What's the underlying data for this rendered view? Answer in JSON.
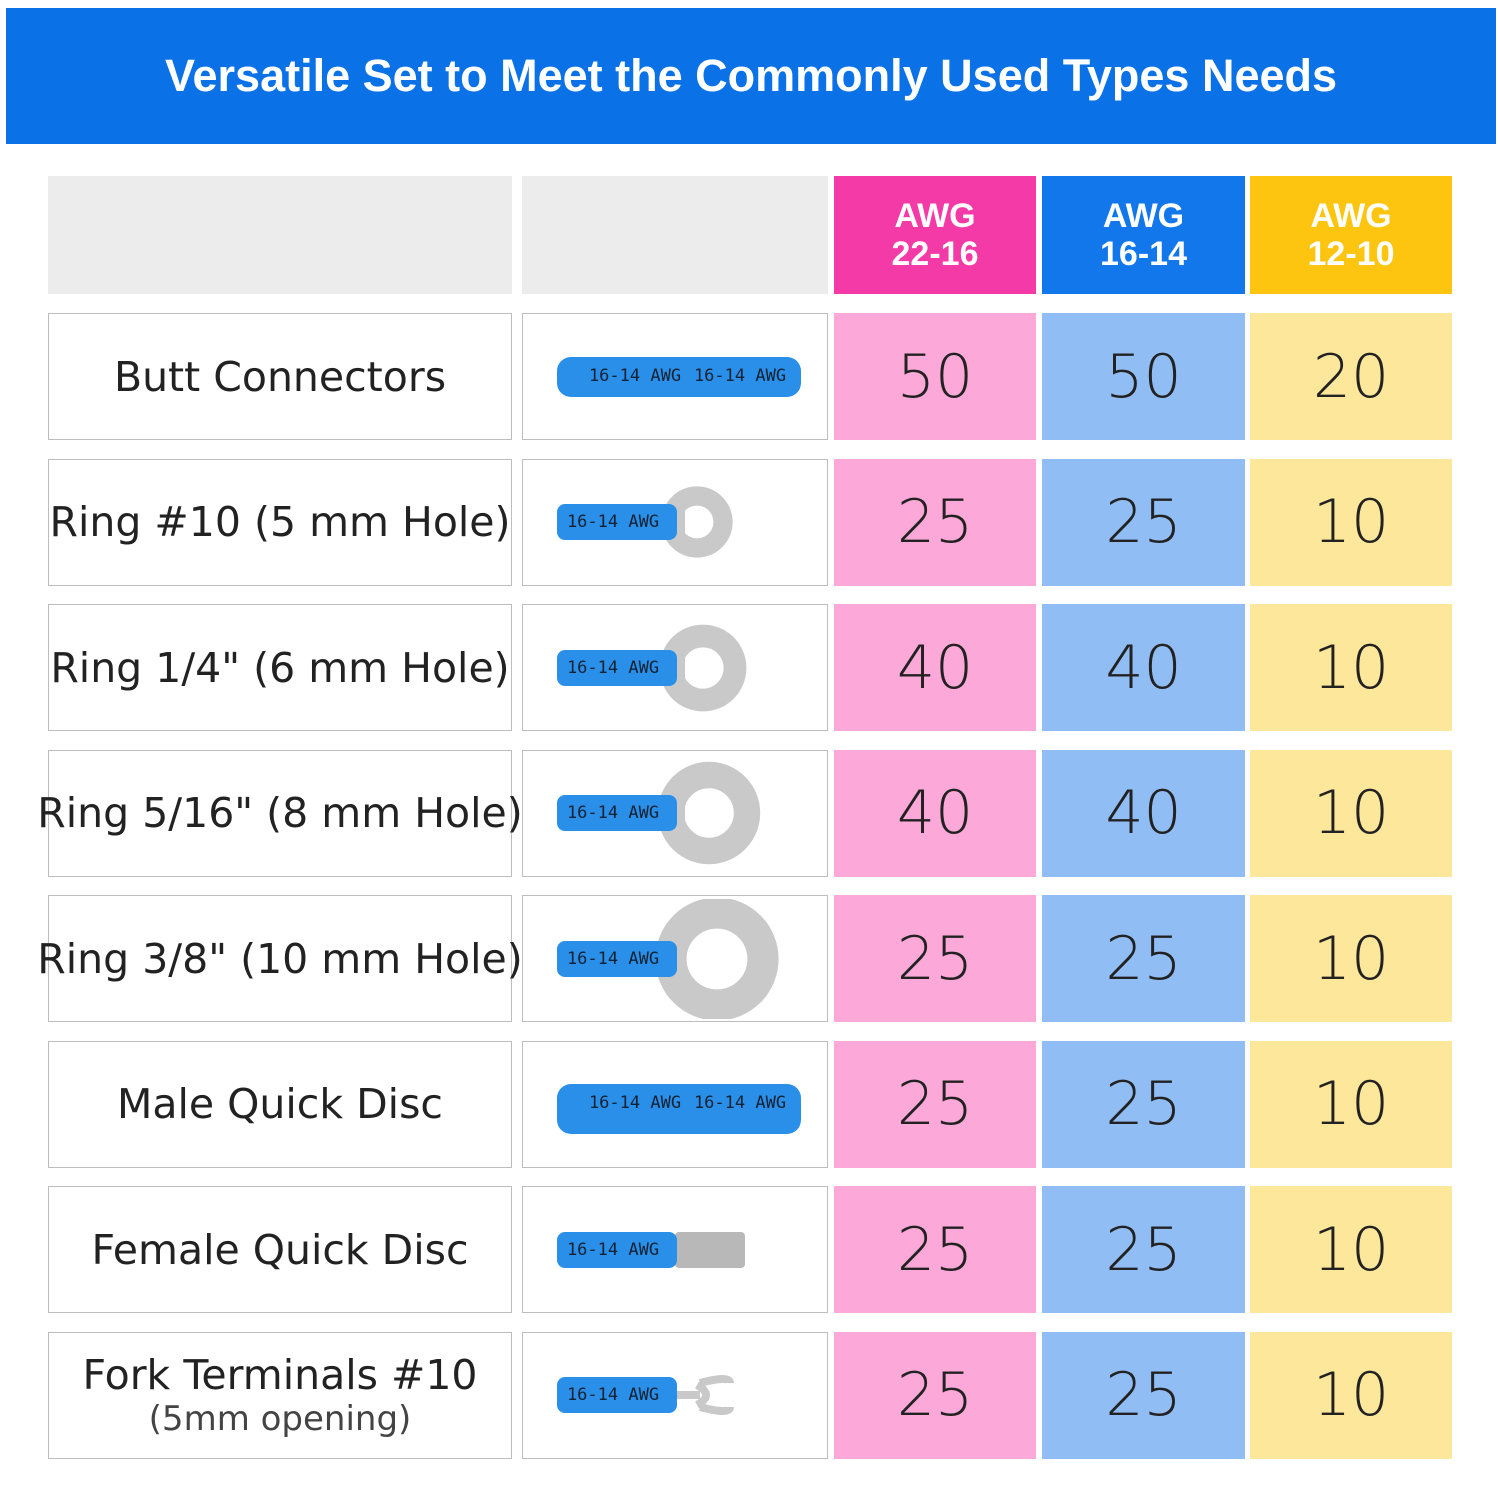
{
  "header": {
    "title": "Versatile Set to Meet the Commonly Used Types Needs"
  },
  "table": {
    "columns": [
      [
        "AWG",
        "22-16"
      ],
      [
        "AWG",
        "16-14"
      ],
      [
        "AWG",
        "12-10"
      ]
    ],
    "product_label": "16-14 AWG",
    "rows": [
      {
        "name": "Butt Connectors",
        "counts": [
          50,
          50,
          20
        ]
      },
      {
        "name": "Ring #10 (5 mm Hole)",
        "counts": [
          25,
          25,
          10
        ]
      },
      {
        "name": "Ring 1/4\" (6 mm Hole)",
        "counts": [
          40,
          40,
          10
        ]
      },
      {
        "name": "Ring 5/16\" (8 mm Hole)",
        "counts": [
          40,
          40,
          10
        ]
      },
      {
        "name": "Ring 3/8\" (10 mm Hole)",
        "counts": [
          25,
          25,
          10
        ]
      },
      {
        "name": "Male Quick Disc",
        "counts": [
          25,
          25,
          10
        ]
      },
      {
        "name": "Female Quick Disc",
        "counts": [
          25,
          25,
          10
        ]
      },
      {
        "name": "Fork Terminals #10",
        "note": "(5mm opening)",
        "counts": [
          25,
          25,
          10
        ]
      }
    ]
  }
}
